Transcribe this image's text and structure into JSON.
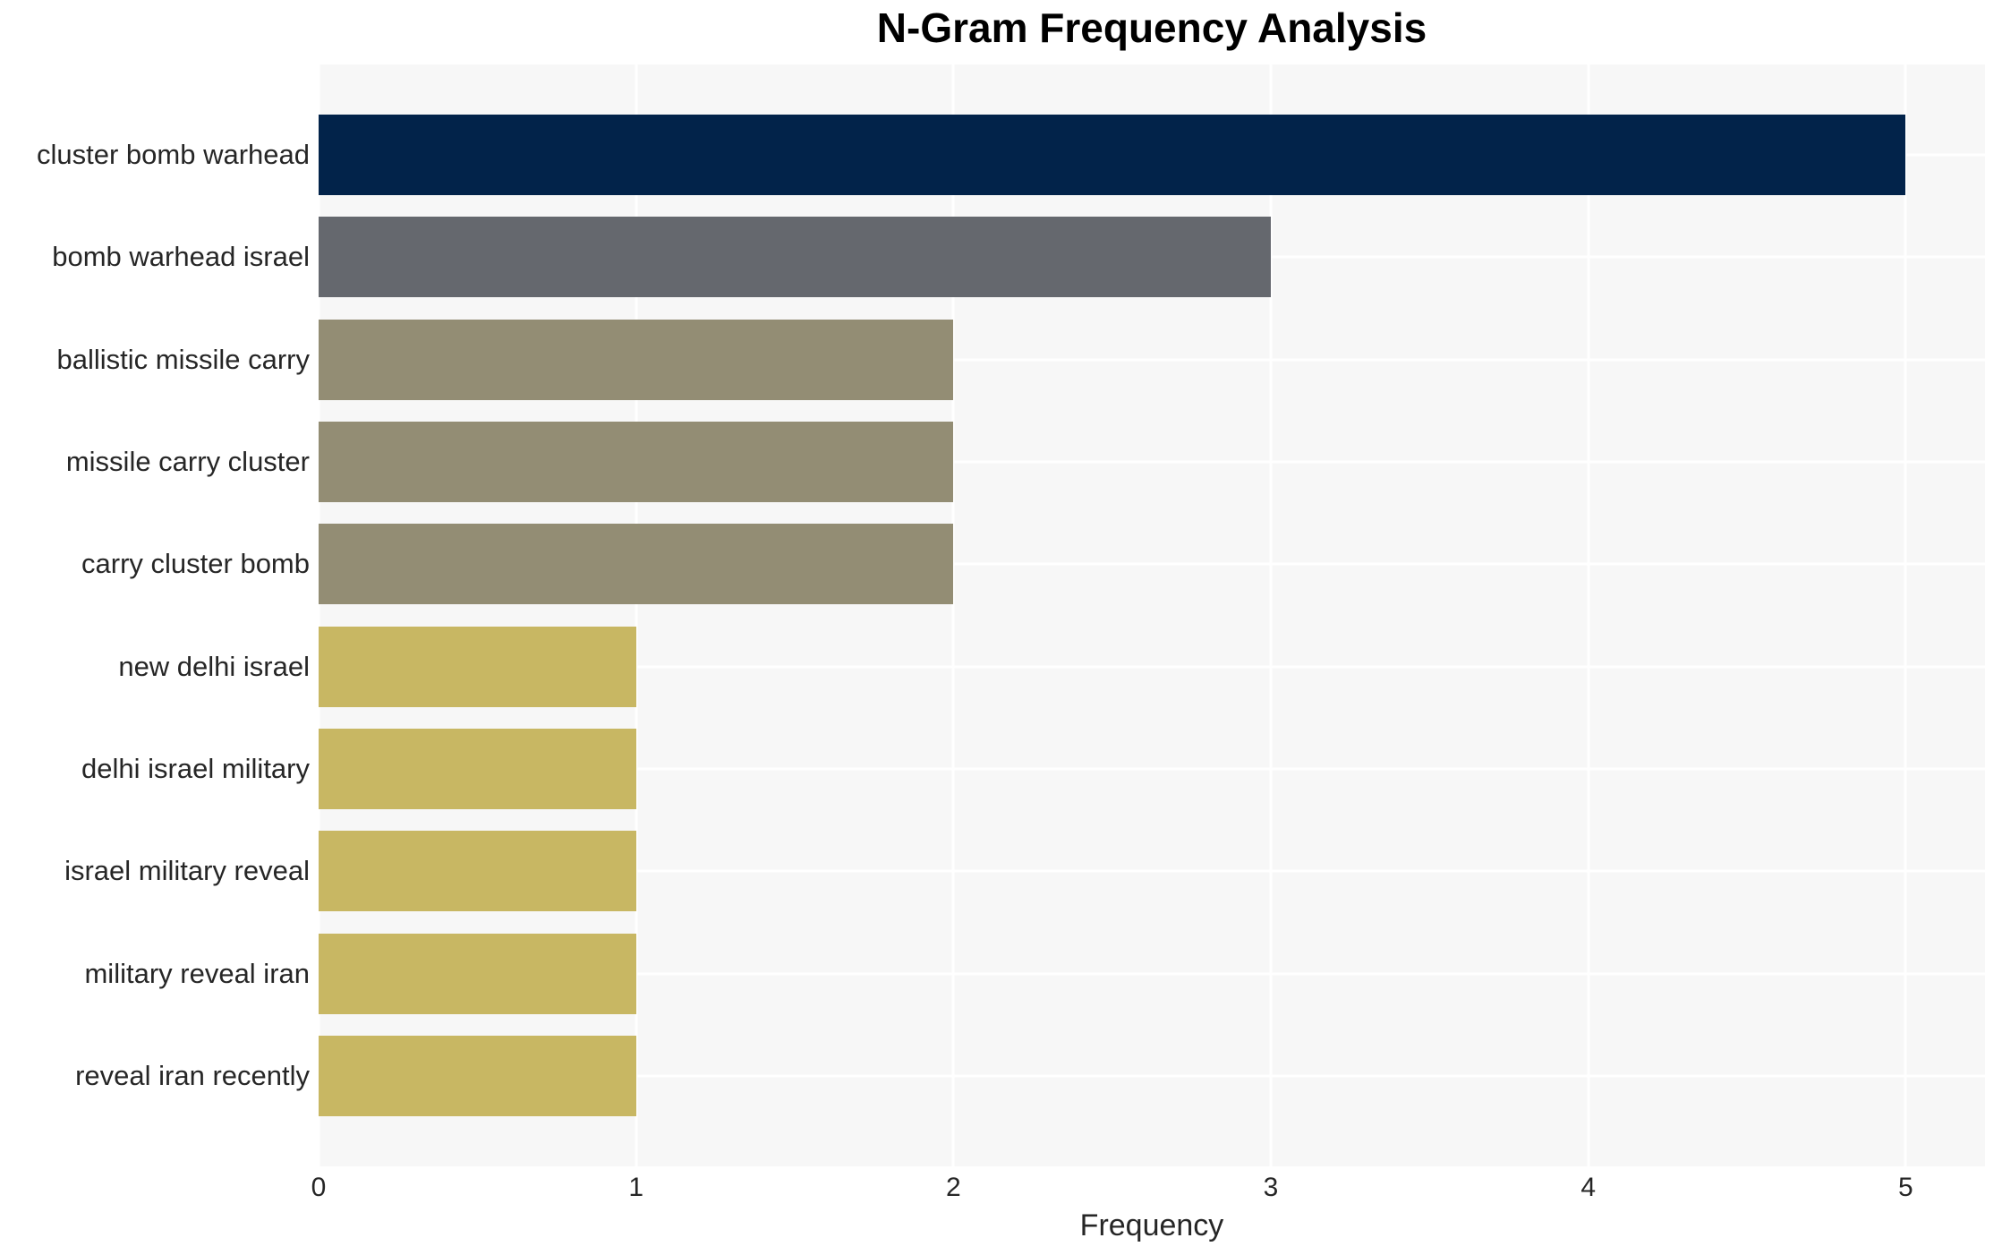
{
  "chart_data": {
    "type": "bar",
    "orientation": "horizontal",
    "title": "N-Gram Frequency Analysis",
    "xlabel": "Frequency",
    "ylabel": "",
    "categories": [
      "cluster bomb warhead",
      "bomb warhead israel",
      "ballistic missile carry",
      "missile carry cluster",
      "carry cluster bomb",
      "new delhi israel",
      "delhi israel military",
      "israel military reveal",
      "military reveal iran",
      "reveal iran recently"
    ],
    "values": [
      5,
      3,
      2,
      2,
      2,
      1,
      1,
      1,
      1,
      1
    ],
    "colors": [
      "#02234a",
      "#65686e",
      "#938d74",
      "#938d74",
      "#938d74",
      "#c8b763",
      "#c8b763",
      "#c8b763",
      "#c8b763",
      "#c8b763"
    ],
    "xticks": [
      0,
      1,
      2,
      3,
      4,
      5
    ],
    "xlim": [
      0,
      5.25
    ],
    "grid": true,
    "legend": "none",
    "plot_bg_color": "#f7f7f7",
    "grid_color": "#ffffff",
    "text_color": "#262626",
    "title_color": "#000000"
  }
}
